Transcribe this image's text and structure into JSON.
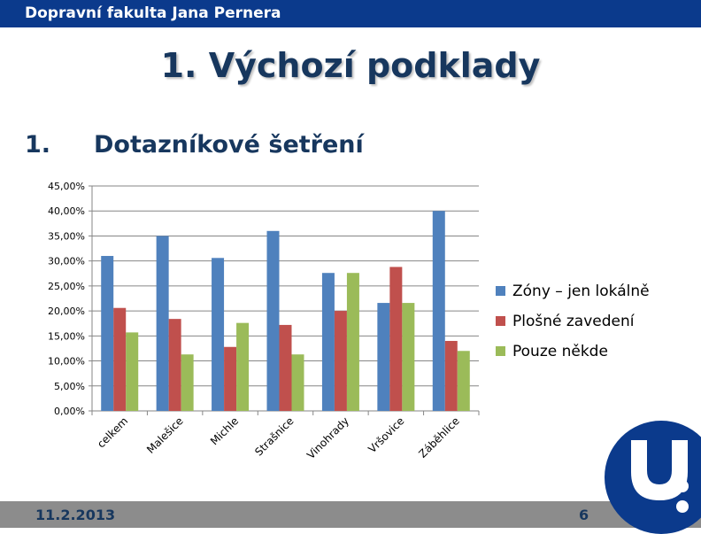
{
  "header": {
    "faculty": "Dopravní fakulta Jana Pernera"
  },
  "slide": {
    "title": "1. Výchozí podklady",
    "section_number": "1.",
    "section_title": "Dotazníkové šetření"
  },
  "footer": {
    "date": "11.2.2013",
    "page": "6"
  },
  "colors": {
    "bar_blue": "#4f81bd",
    "bar_red": "#c0504d",
    "bar_green": "#9bbb59",
    "header_bg": "#0b3a8c",
    "title_text": "#17375e"
  },
  "chart_data": {
    "type": "bar",
    "categories": [
      "celkem",
      "Malešice",
      "Michle",
      "Strašnice",
      "Vinohrady",
      "Vršovice",
      "Záběhlice"
    ],
    "series": [
      {
        "name": "Zóny – jen lokálně",
        "values": [
          31.0,
          35.0,
          30.6,
          36.0,
          27.6,
          21.6,
          40.0
        ]
      },
      {
        "name": "Plošné zavedení",
        "values": [
          20.6,
          18.4,
          12.8,
          17.2,
          20.0,
          28.8,
          14.0
        ]
      },
      {
        "name": "Pouze někde",
        "values": [
          15.7,
          11.3,
          17.6,
          11.3,
          27.6,
          21.6,
          12.0
        ]
      }
    ],
    "y_ticks": [
      "0,00%",
      "5,00%",
      "10,00%",
      "15,00%",
      "20,00%",
      "25,00%",
      "30,00%",
      "35,00%",
      "40,00%",
      "45,00%"
    ],
    "ylim": [
      0,
      45
    ],
    "grid": true,
    "legend_position": "right"
  }
}
